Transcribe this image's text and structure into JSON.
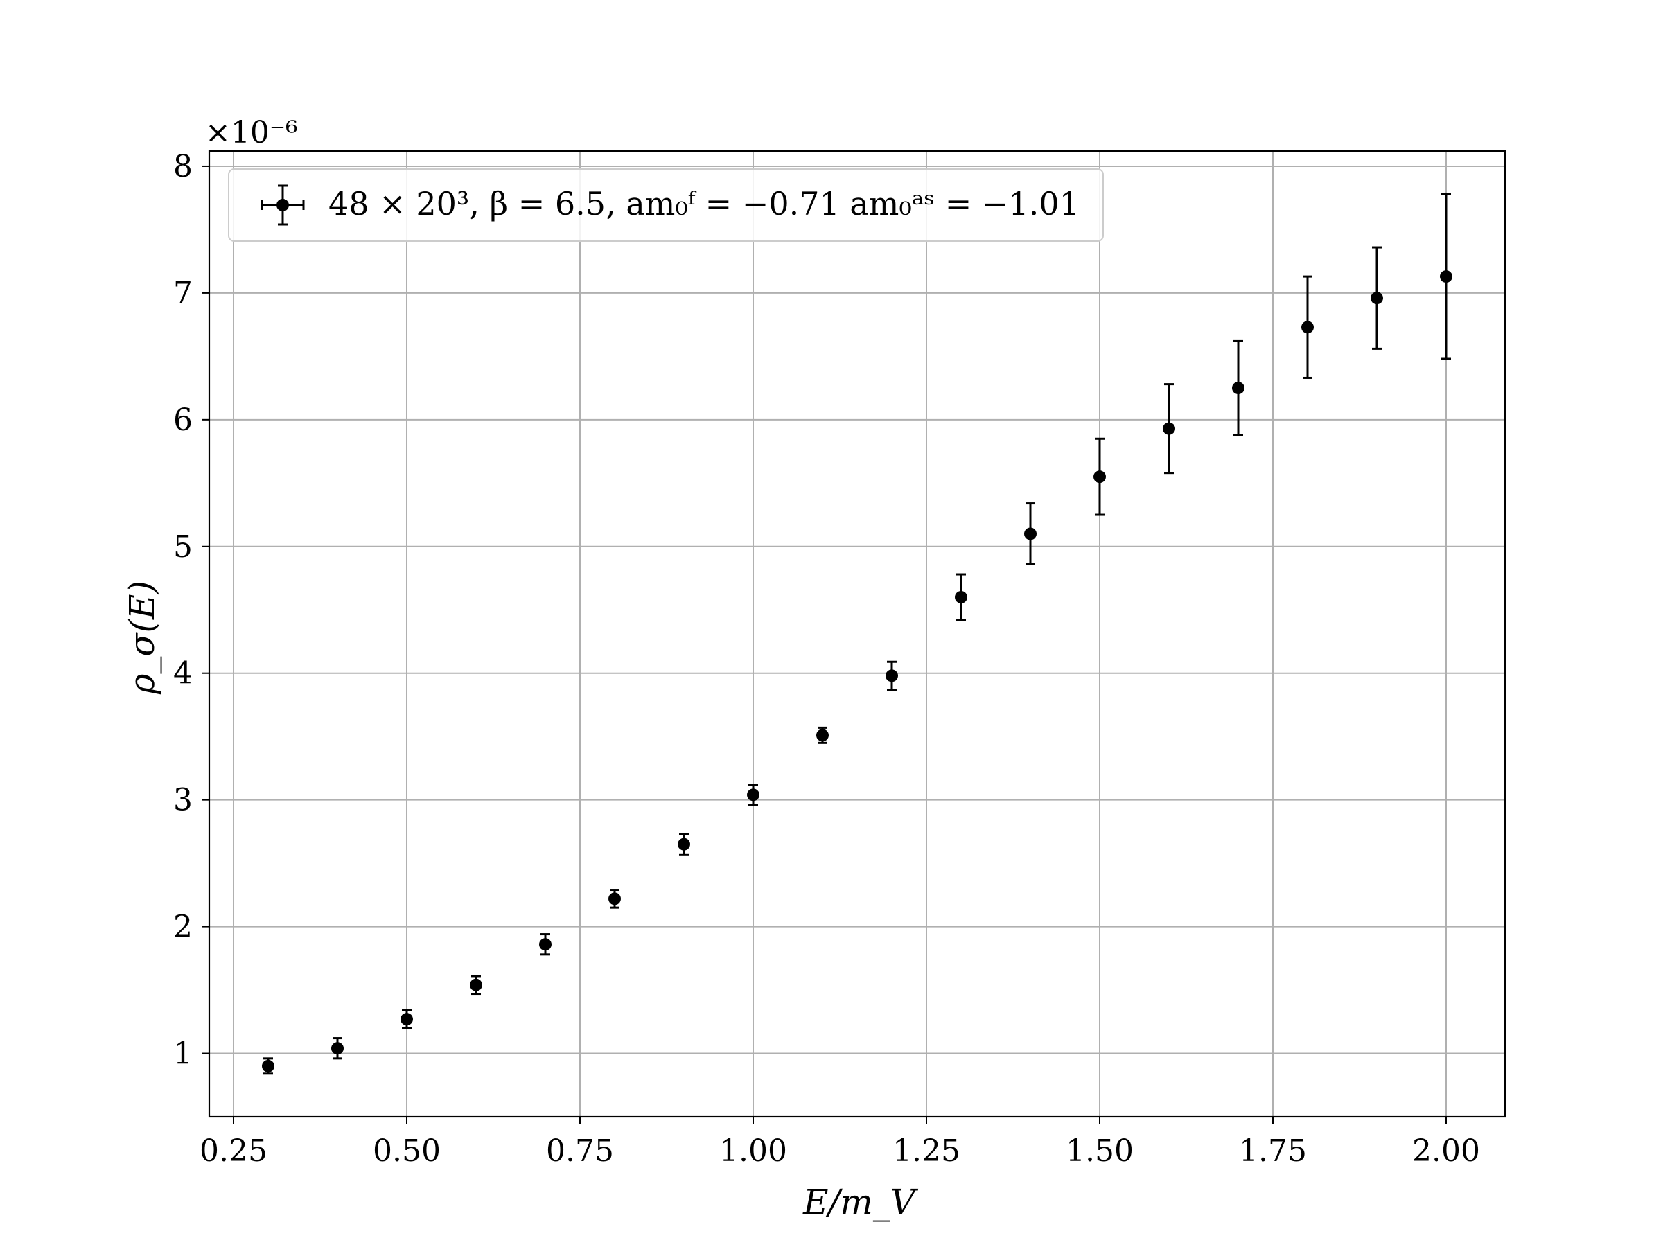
{
  "chart_data": {
    "type": "scatter",
    "xlabel": "E/m_V",
    "ylabel": "ρ_σ(E)",
    "y_offset_label": "×10⁻⁶",
    "xlim": [
      0.215,
      2.085
    ],
    "ylim": [
      0.5,
      8.12
    ],
    "x_ticks": [
      0.25,
      0.5,
      0.75,
      1.0,
      1.25,
      1.5,
      1.75,
      2.0
    ],
    "x_tick_labels": [
      "0.25",
      "0.50",
      "0.75",
      "1.00",
      "1.25",
      "1.50",
      "1.75",
      "2.00"
    ],
    "y_ticks": [
      1,
      2,
      3,
      4,
      5,
      6,
      7,
      8
    ],
    "y_tick_labels": [
      "1",
      "2",
      "3",
      "4",
      "5",
      "6",
      "7",
      "8"
    ],
    "grid": true,
    "legend_position": "top-left",
    "series": [
      {
        "name": "48 × 20³,  β = 6.5,  am₀ᶠ = −0.71 am₀ᵃˢ = −1.01",
        "color": "#000000",
        "x": [
          0.3,
          0.4,
          0.5,
          0.6,
          0.7,
          0.8,
          0.9,
          1.0,
          1.1,
          1.2,
          1.3,
          1.4,
          1.5,
          1.6,
          1.7,
          1.8,
          1.9,
          2.0
        ],
        "y": [
          0.9,
          1.04,
          1.27,
          1.54,
          1.86,
          2.22,
          2.65,
          3.04,
          3.51,
          3.98,
          4.6,
          5.1,
          5.55,
          5.93,
          6.25,
          6.73,
          6.96,
          7.13
        ],
        "yerr": [
          0.06,
          0.08,
          0.07,
          0.07,
          0.08,
          0.07,
          0.08,
          0.08,
          0.06,
          0.11,
          0.18,
          0.24,
          0.3,
          0.35,
          0.37,
          0.4,
          0.4,
          0.65
        ]
      }
    ]
  }
}
